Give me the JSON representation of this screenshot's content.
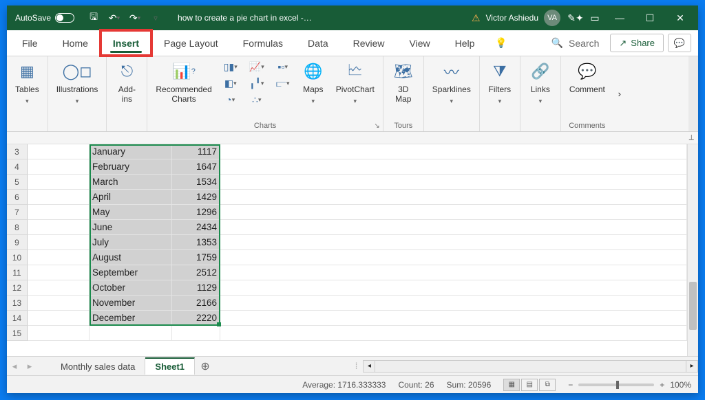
{
  "titlebar": {
    "autosave_label": "AutoSave",
    "autosave_state": "Off",
    "doc_title": "how to create a pie chart in excel  -…",
    "user_name": "Victor Ashiedu",
    "user_initials": "VA"
  },
  "tabs": {
    "file": "File",
    "home": "Home",
    "insert": "Insert",
    "page_layout": "Page Layout",
    "formulas": "Formulas",
    "data": "Data",
    "review": "Review",
    "view": "View",
    "help": "Help",
    "search": "Search",
    "share": "Share"
  },
  "ribbon": {
    "tables": "Tables",
    "illustrations": "Illustrations",
    "addins": "Add-\nins",
    "reccharts": "Recommended\nCharts",
    "charts_group": "Charts",
    "maps": "Maps",
    "pivotchart": "PivotChart",
    "tours_group": "Tours",
    "map3d": "3D\nMap",
    "sparklines": "Sparklines",
    "filters": "Filters",
    "links": "Links",
    "comment": "Comment",
    "comments_group": "Comments"
  },
  "data": {
    "rows": [
      {
        "n": 3,
        "b": "January",
        "c": 1117
      },
      {
        "n": 4,
        "b": "February",
        "c": 1647
      },
      {
        "n": 5,
        "b": "March",
        "c": 1534
      },
      {
        "n": 6,
        "b": "April",
        "c": 1429
      },
      {
        "n": 7,
        "b": "May",
        "c": 1296
      },
      {
        "n": 8,
        "b": "June",
        "c": 2434
      },
      {
        "n": 9,
        "b": "July",
        "c": 1353
      },
      {
        "n": 10,
        "b": "August",
        "c": 1759
      },
      {
        "n": 11,
        "b": "September",
        "c": 2512
      },
      {
        "n": 12,
        "b": "October",
        "c": 1129
      },
      {
        "n": 13,
        "b": "November",
        "c": 2166
      },
      {
        "n": 14,
        "b": "December",
        "c": 2220
      }
    ],
    "empty_row": 15
  },
  "sheettabs": {
    "tab1": "Monthly sales data",
    "tab2": "Sheet1"
  },
  "status": {
    "average_label": "Average:",
    "average_value": "1716.333333",
    "count_label": "Count:",
    "count_value": "26",
    "sum_label": "Sum:",
    "sum_value": "20596",
    "zoom": "100%"
  },
  "colors": {
    "brand": "#185c37",
    "highlight": "#e53935",
    "selection": "#d1d1d1",
    "sel_border": "#1a8a4c"
  }
}
